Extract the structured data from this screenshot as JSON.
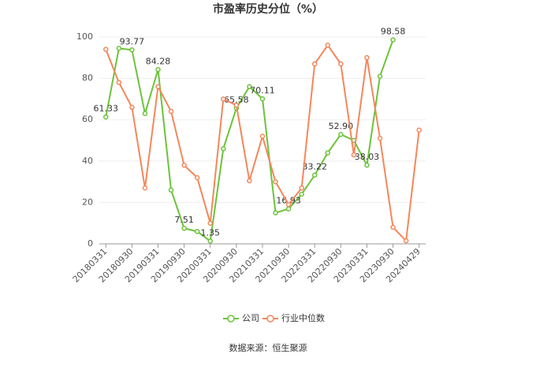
{
  "chart_data": {
    "type": "line",
    "title": "市盈率历史分位（%）",
    "source": "数据来源：恒生聚源",
    "categories": [
      "20180331",
      null,
      "20180930",
      null,
      "20190331",
      null,
      "20190930",
      null,
      "20200331",
      null,
      "20200930",
      null,
      "20210331",
      null,
      "20210930",
      null,
      "20220331",
      null,
      "20220930",
      null,
      "20230331",
      null,
      "20230930",
      null,
      "20240429"
    ],
    "series": [
      {
        "name": "公司",
        "color": "#6cc33a",
        "values": [
          61.33,
          94.5,
          93.77,
          63,
          84.28,
          26,
          7.51,
          6,
          1.35,
          46,
          65.58,
          76,
          70.11,
          15,
          16.93,
          24,
          33.22,
          44,
          52.9,
          50,
          38.03,
          81,
          98.58,
          null,
          null
        ],
        "value_labels": [
          "61.33",
          null,
          "93.77",
          null,
          "84.28",
          null,
          "7.51",
          null,
          "1.35",
          null,
          "65.58",
          null,
          "70.11",
          null,
          "16.93",
          null,
          "33.22",
          null,
          "52.90",
          null,
          "38.03",
          null,
          "98.58",
          null,
          null
        ]
      },
      {
        "name": "行业中位数",
        "color": "#f4875a",
        "values": [
          94,
          78,
          66,
          27,
          76,
          64,
          38,
          32,
          10,
          70,
          67,
          30.5,
          52,
          30,
          19,
          27,
          87,
          96,
          87,
          43,
          90,
          51,
          8,
          1.5,
          55
        ]
      }
    ],
    "ylim": [
      0,
      100
    ],
    "yticks": [
      0,
      20,
      40,
      60,
      80,
      100
    ],
    "grid": true
  }
}
